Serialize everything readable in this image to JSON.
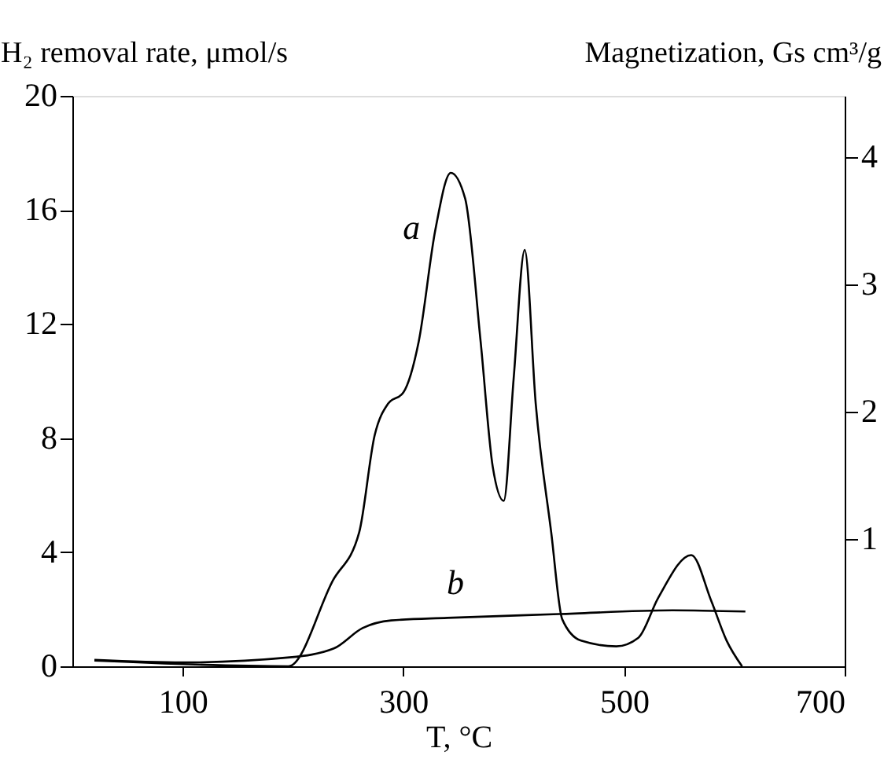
{
  "chart_data": {
    "type": "line",
    "ylabel": "H₂ removal rate, μmol/s",
    "y2label": "Magnetization, Gs cm³/g",
    "xlabel": "T, °C",
    "xlim": [
      0,
      700
    ],
    "xticks": [
      100,
      300,
      500,
      700
    ],
    "ylim": [
      0,
      20
    ],
    "yticks": [
      0,
      4,
      8,
      12,
      16,
      20
    ],
    "y2lim": [
      0,
      4.48
    ],
    "y2ticks": [
      1,
      2,
      3,
      4
    ],
    "grid": false,
    "line_style": "solid",
    "marker": "none",
    "series": [
      {
        "name": "a",
        "color": "#000000",
        "x": [
          20,
          196,
          236,
          260,
          274,
          286,
          300,
          314,
          329,
          343,
          356,
          370,
          381,
          391,
          400,
          410,
          420,
          434,
          444,
          461,
          493,
          513,
          531,
          561,
          579,
          593,
          607
        ],
        "values": [
          0.2,
          0.0,
          3.0,
          4.7,
          8.1,
          9.2,
          9.6,
          11.4,
          15.3,
          17.3,
          16.4,
          11.4,
          7.0,
          5.8,
          10.1,
          14.6,
          9.2,
          4.7,
          1.65,
          0.9,
          0.7,
          1.0,
          2.4,
          3.9,
          2.3,
          0.9,
          0.0
        ]
      },
      {
        "name": "b",
        "color": "#000000",
        "axis": "y2",
        "x": [
          20,
          100,
          197,
          237,
          263,
          289,
          340,
          441,
          544,
          610
        ],
        "values": [
          0.05,
          0.03,
          0.07,
          0.14,
          0.3,
          0.36,
          0.38,
          0.41,
          0.44,
          0.43
        ]
      }
    ]
  }
}
